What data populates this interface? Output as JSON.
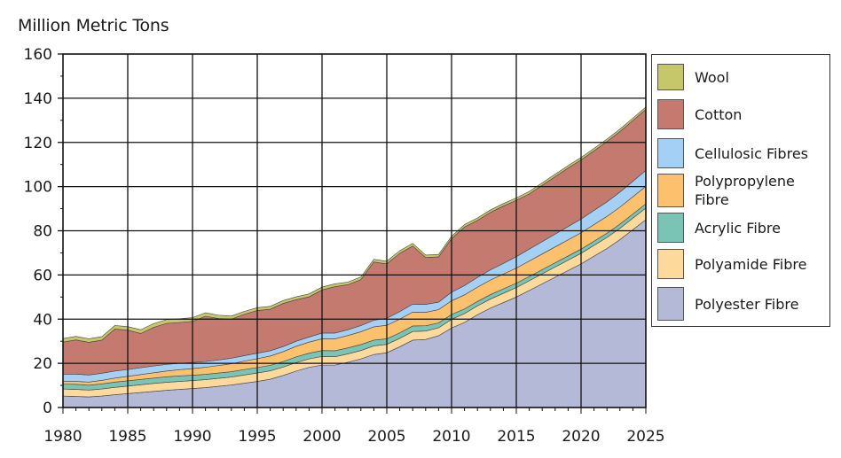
{
  "chart_data": {
    "type": "area",
    "stacked": true,
    "title": "",
    "ylabel": "Million Metric Tons",
    "xlabel": "",
    "xlim": [
      1980,
      2025
    ],
    "ylim": [
      0,
      160
    ],
    "x_ticks": [
      1980,
      1985,
      1990,
      1995,
      2000,
      2005,
      2010,
      2015,
      2020,
      2025
    ],
    "y_ticks": [
      0,
      20,
      40,
      60,
      80,
      100,
      120,
      140,
      160
    ],
    "grid": true,
    "legend_position": "right",
    "x": [
      1980,
      1981,
      1982,
      1983,
      1984,
      1985,
      1986,
      1987,
      1988,
      1989,
      1990,
      1991,
      1992,
      1993,
      1994,
      1995,
      1996,
      1997,
      1998,
      1999,
      2000,
      2001,
      2002,
      2003,
      2004,
      2005,
      2006,
      2007,
      2008,
      2009,
      2010,
      2011,
      2012,
      2013,
      2014,
      2015,
      2016,
      2017,
      2018,
      2019,
      2020,
      2021,
      2022,
      2023,
      2024,
      2025
    ],
    "series": [
      {
        "name": "Polyester Fibre",
        "color": "#b3b9d6",
        "values": [
          5.2,
          5.0,
          4.8,
          5.2,
          5.8,
          6.3,
          6.8,
          7.3,
          7.8,
          8.2,
          8.6,
          9.0,
          9.6,
          10.2,
          11.0,
          11.8,
          12.8,
          14.5,
          16.5,
          18.2,
          19.2,
          19.2,
          20.5,
          22.0,
          24.0,
          24.8,
          27.5,
          30.5,
          30.8,
          32.5,
          36.0,
          38.5,
          42.0,
          45.0,
          47.5,
          50.0,
          53.0,
          56.0,
          59.0,
          62.0,
          65.0,
          68.5,
          72.0,
          76.0,
          80.5,
          85.0
        ]
      },
      {
        "name": "Polyamide Fibre",
        "color": "#fdd99b",
        "values": [
          3.2,
          3.2,
          3.1,
          3.2,
          3.3,
          3.4,
          3.5,
          3.6,
          3.6,
          3.6,
          3.6,
          3.6,
          3.6,
          3.6,
          3.7,
          3.8,
          3.8,
          3.8,
          3.8,
          3.8,
          3.9,
          3.8,
          3.8,
          3.8,
          3.9,
          3.8,
          3.8,
          3.9,
          3.8,
          3.6,
          3.9,
          4.0,
          4.0,
          4.1,
          4.2,
          4.3,
          4.4,
          4.5,
          4.6,
          4.7,
          4.8,
          4.9,
          5.0,
          5.1,
          5.2,
          5.3
        ]
      },
      {
        "name": "Acrylic Fibre",
        "color": "#79c4b5",
        "values": [
          2.2,
          2.3,
          2.2,
          2.3,
          2.4,
          2.4,
          2.4,
          2.4,
          2.5,
          2.5,
          2.4,
          2.4,
          2.4,
          2.4,
          2.5,
          2.5,
          2.5,
          2.5,
          2.6,
          2.6,
          2.7,
          2.7,
          2.7,
          2.7,
          2.6,
          2.5,
          2.5,
          2.5,
          2.4,
          2.2,
          2.2,
          2.1,
          2.0,
          2.0,
          2.0,
          2.0,
          1.9,
          1.9,
          1.9,
          1.9,
          1.9,
          1.9,
          1.9,
          1.9,
          1.9,
          1.9
        ]
      },
      {
        "name": "Polypropylene Fibre",
        "color": "#fdc06c",
        "values": [
          1.2,
          1.3,
          1.4,
          1.6,
          1.8,
          2.0,
          2.2,
          2.4,
          2.6,
          2.8,
          3.0,
          3.2,
          3.4,
          3.6,
          3.8,
          4.0,
          4.2,
          4.5,
          4.8,
          5.0,
          5.3,
          5.4,
          5.6,
          5.8,
          6.0,
          6.1,
          6.2,
          6.3,
          6.1,
          6.0,
          6.2,
          6.4,
          6.5,
          6.6,
          6.7,
          6.8,
          7.0,
          7.1,
          7.2,
          7.3,
          7.4,
          7.5,
          7.6,
          7.7,
          7.8,
          7.9
        ]
      },
      {
        "name": "Cellulosic Fibres",
        "color": "#a4d0f6",
        "values": [
          3.3,
          3.3,
          3.2,
          3.2,
          3.2,
          3.1,
          3.1,
          3.1,
          3.0,
          2.9,
          2.8,
          2.6,
          2.5,
          2.5,
          2.5,
          2.5,
          2.4,
          2.3,
          2.3,
          2.3,
          2.6,
          2.6,
          2.6,
          2.8,
          3.0,
          3.2,
          3.4,
          3.6,
          3.6,
          3.4,
          3.9,
          4.2,
          4.4,
          4.6,
          4.8,
          5.2,
          5.4,
          5.6,
          5.8,
          6.0,
          6.2,
          6.4,
          6.6,
          6.8,
          7.0,
          7.2
        ]
      },
      {
        "name": "Cotton",
        "color": "#c47a6e",
        "values": [
          14.5,
          15.5,
          14.8,
          15.0,
          19.0,
          17.8,
          15.5,
          17.5,
          18.6,
          18.5,
          18.6,
          20.5,
          18.8,
          17.7,
          18.7,
          19.3,
          18.8,
          19.5,
          18.8,
          18.2,
          19.5,
          21.0,
          20.4,
          20.8,
          26.4,
          24.6,
          26.4,
          26.3,
          21.2,
          20.5,
          24.2,
          26.5,
          25.8,
          26.0,
          26.0,
          25.5,
          25.0,
          25.5,
          26.0,
          26.5,
          26.8,
          27.0,
          27.3,
          27.4,
          27.5,
          27.6
        ]
      },
      {
        "name": "Wool",
        "color": "#c6c66a",
        "values": [
          1.6,
          1.6,
          1.6,
          1.6,
          1.6,
          1.6,
          1.7,
          1.7,
          1.7,
          1.7,
          1.7,
          1.6,
          1.5,
          1.4,
          1.3,
          1.3,
          1.3,
          1.3,
          1.3,
          1.3,
          1.3,
          1.3,
          1.2,
          1.2,
          1.2,
          1.2,
          1.2,
          1.2,
          1.1,
          1.1,
          1.1,
          1.1,
          1.1,
          1.1,
          1.1,
          1.1,
          1.1,
          1.1,
          1.1,
          1.1,
          1.1,
          1.1,
          1.1,
          1.1,
          1.1,
          1.1
        ]
      }
    ]
  },
  "legend": {
    "items": [
      {
        "label": "Wool",
        "color": "#c6c66a"
      },
      {
        "label": "Cotton",
        "color": "#c47a6e"
      },
      {
        "label": "Cellulosic Fibres",
        "color": "#a4d0f6"
      },
      {
        "label": "Polypropylene Fibre",
        "color": "#fdc06c"
      },
      {
        "label": "Acrylic Fibre",
        "color": "#79c4b5"
      },
      {
        "label": "Polyamide Fibre",
        "color": "#fdd99b"
      },
      {
        "label": "Polyester Fibre",
        "color": "#b3b9d6"
      }
    ]
  }
}
